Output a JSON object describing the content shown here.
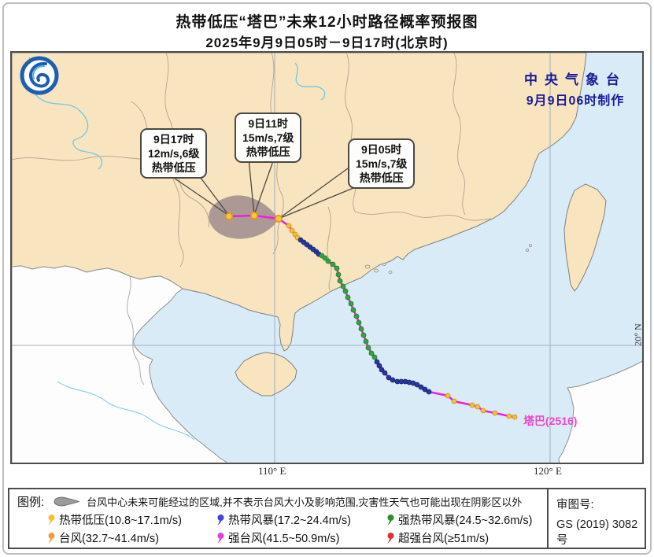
{
  "title": {
    "line1": "热带低压“塔巴”未来12小时路径概率预报图",
    "line2": "2025年9月9日05时－9日17时(北京时)"
  },
  "map": {
    "agency": {
      "line1": "中央气象台",
      "line2": "9月9日06时制作"
    },
    "storm_label": "塔巴(2516)",
    "axis": {
      "lon1": "110° E",
      "lon2": "120° E",
      "lat1": "20° N"
    },
    "callouts": [
      {
        "l1": "9日17时",
        "l2": "12m/s,6级",
        "l3": "热带低压"
      },
      {
        "l1": "9日11时",
        "l2": "15m/s,7级",
        "l3": "热带低压"
      },
      {
        "l1": "9日05时",
        "l2": "15m/s,7级",
        "l3": "热带低压"
      }
    ],
    "track": {
      "line_color": "#ef1fdb",
      "colors": {
        "td": "#f2c13a",
        "ts": "#27379b",
        "sts": "#37a23f"
      },
      "strokes": {
        "td": "#cf8f12",
        "ts": "#18246e",
        "sts": "#227a2c"
      },
      "forecast_fill": "#f7c53e",
      "forecast_stroke": "#e8960f",
      "history": [
        [
          339,
          211,
          "td"
        ],
        [
          352,
          220,
          "td"
        ],
        [
          356,
          226,
          "td"
        ],
        [
          360,
          231,
          "td"
        ],
        [
          363,
          235,
          "td"
        ],
        [
          367,
          238,
          "ts"
        ],
        [
          371,
          241,
          "ts"
        ],
        [
          375,
          244,
          "ts"
        ],
        [
          379,
          247,
          "ts"
        ],
        [
          383,
          250,
          "ts"
        ],
        [
          387,
          253,
          "ts"
        ],
        [
          390,
          256,
          "ts"
        ],
        [
          394,
          258,
          "sts"
        ],
        [
          398,
          261,
          "sts"
        ],
        [
          402,
          265,
          "sts"
        ],
        [
          408,
          269,
          "sts"
        ],
        [
          413,
          274,
          "sts"
        ],
        [
          415,
          282,
          "sts"
        ],
        [
          417,
          290,
          "sts"
        ],
        [
          421,
          297,
          "sts"
        ],
        [
          424,
          303,
          "sts"
        ],
        [
          427,
          311,
          "sts"
        ],
        [
          431,
          319,
          "sts"
        ],
        [
          434,
          327,
          "sts"
        ],
        [
          438,
          335,
          "sts"
        ],
        [
          441,
          343,
          "sts"
        ],
        [
          444,
          351,
          "sts"
        ],
        [
          447,
          359,
          "sts"
        ],
        [
          450,
          367,
          "sts"
        ],
        [
          453,
          375,
          "sts"
        ],
        [
          457,
          382,
          "sts"
        ],
        [
          461,
          387,
          "sts"
        ],
        [
          464,
          393,
          "ts"
        ],
        [
          467,
          398,
          "ts"
        ],
        [
          470,
          403,
          "ts"
        ],
        [
          474,
          407,
          "ts"
        ],
        [
          479,
          413,
          "ts"
        ],
        [
          484,
          416,
          "ts"
        ],
        [
          490,
          418,
          "ts"
        ],
        [
          495,
          418,
          "ts"
        ],
        [
          500,
          418,
          "ts"
        ],
        [
          505,
          419,
          "ts"
        ],
        [
          510,
          420,
          "ts"
        ],
        [
          515,
          422,
          "ts"
        ],
        [
          520,
          425,
          "ts"
        ],
        [
          525,
          428,
          "ts"
        ],
        [
          530,
          431,
          "ts"
        ],
        [
          554,
          436,
          "td"
        ],
        [
          562,
          443,
          "td"
        ],
        [
          585,
          448,
          "td"
        ],
        [
          592,
          450,
          "td"
        ],
        [
          599,
          455,
          "td"
        ],
        [
          614,
          458,
          "td"
        ],
        [
          632,
          462,
          "td"
        ],
        [
          639,
          463,
          "td"
        ]
      ],
      "forecast": [
        [
          339,
          211
        ],
        [
          308,
          207
        ],
        [
          276,
          208
        ]
      ]
    }
  },
  "legend": {
    "title": "图例:",
    "area_desc": "台风中心未来可能经过的区域,并不表示台风大小及影响范围,灾害性天气也可能出现在阴影区以外",
    "items": [
      {
        "label": "热带低压(10.8~17.1m/s)",
        "color": "#f0c435"
      },
      {
        "label": "热带风暴(17.2~24.4m/s)",
        "color": "#4343d9"
      },
      {
        "label": "强热带风暴(24.5~32.6m/s)",
        "color": "#2f8f2f"
      },
      {
        "label": "台风(32.7~41.4m/s)",
        "color": "#f59a3c"
      },
      {
        "label": "强台风(41.5~50.9m/s)",
        "color": "#e23ee2"
      },
      {
        "label": "超强台风(≥51m/s)",
        "color": "#e03030"
      }
    ],
    "license": {
      "line1": "审图号:",
      "line2": "GS (2019) 3082号"
    }
  }
}
